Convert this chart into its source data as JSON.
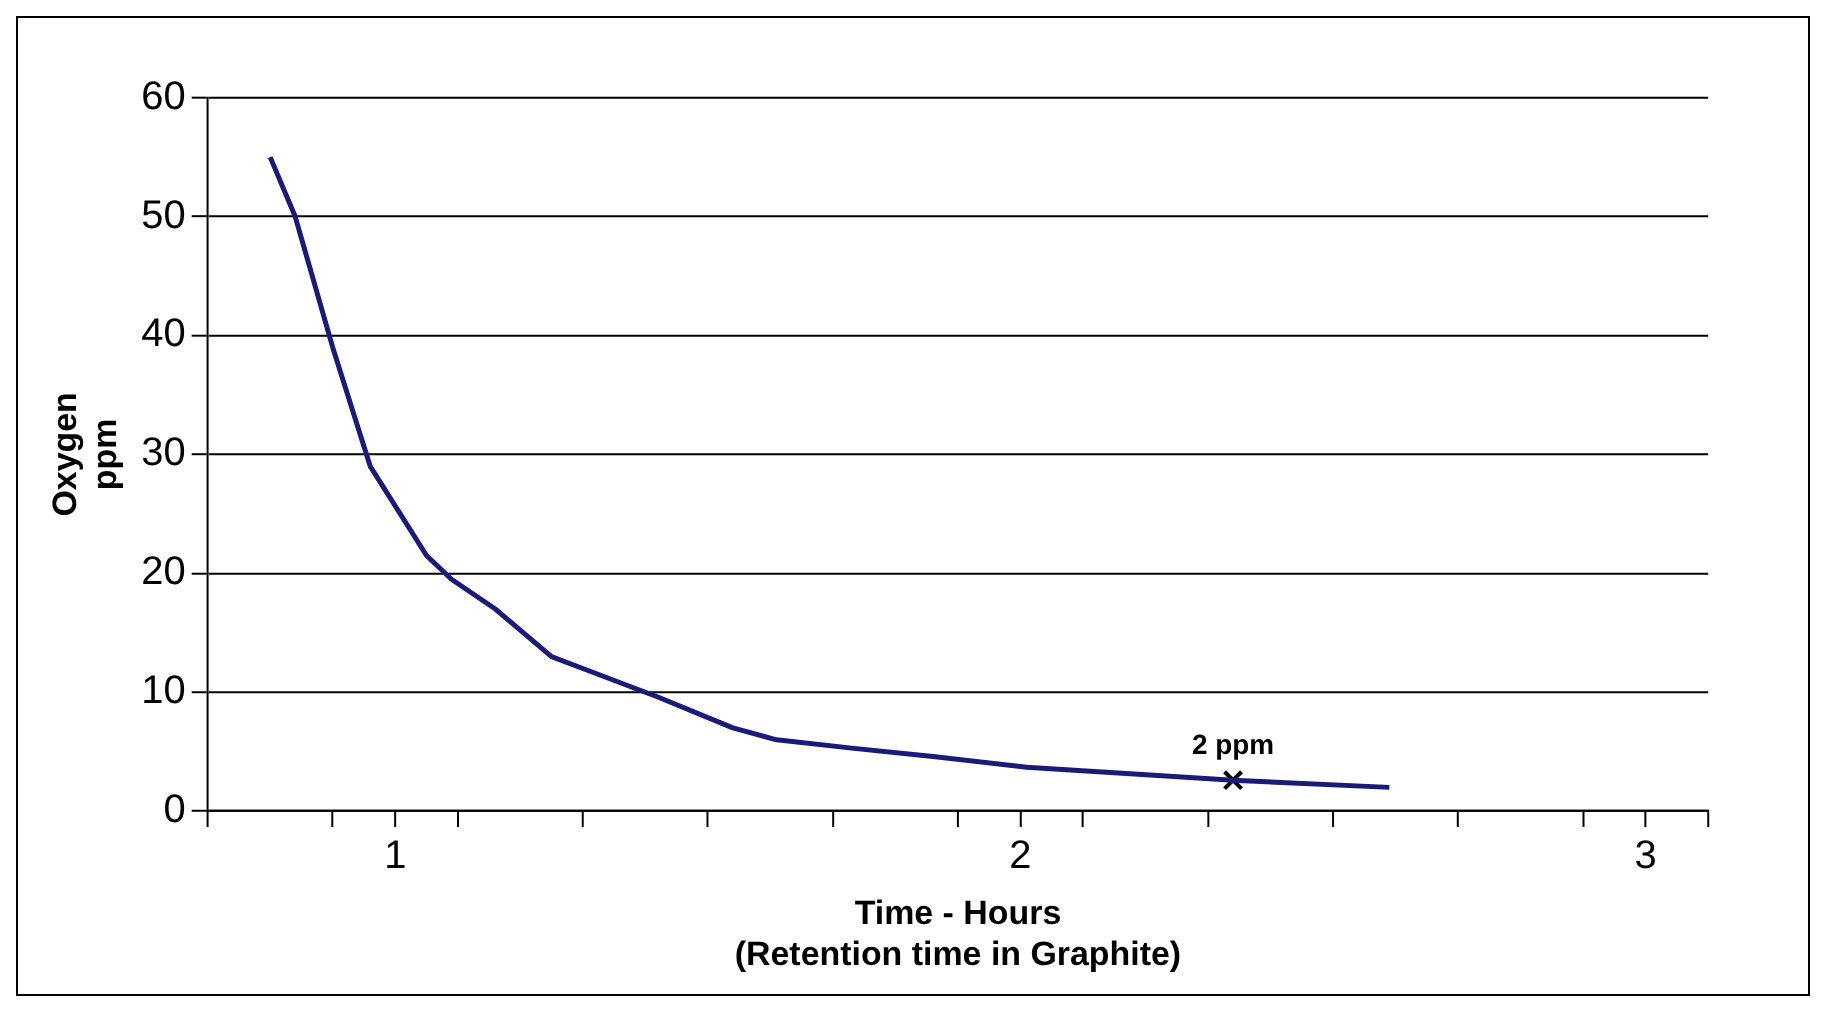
{
  "chart_data": {
    "type": "line",
    "xlabel": "Time - Hours\n(Retention time in Graphite)",
    "ylabel": "Oxygen\nppm",
    "xlim": [
      0.7,
      3.1
    ],
    "xticks": [
      {
        "value": 0.7,
        "label": null
      },
      {
        "value": 0.9,
        "label": null
      },
      1,
      {
        "value": 1.1,
        "label": null
      },
      {
        "value": 1.3,
        "label": null
      },
      {
        "value": 1.5,
        "label": null
      },
      {
        "value": 1.7,
        "label": null
      },
      {
        "value": 1.9,
        "label": null
      },
      2,
      {
        "value": 2.1,
        "label": null
      },
      {
        "value": 2.3,
        "label": null
      },
      {
        "value": 2.5,
        "label": null
      },
      {
        "value": 2.7,
        "label": null
      },
      {
        "value": 2.9,
        "label": null
      },
      3,
      {
        "value": 3.1,
        "label": null
      }
    ],
    "ylim": [
      0,
      60
    ],
    "yticks": [
      0,
      10,
      20,
      30,
      40,
      50,
      60
    ],
    "grid": "y",
    "legend": false,
    "line_style": "solid",
    "marker": "none",
    "series": [
      {
        "color": "#1a1a7a",
        "x": [
          0.8,
          0.84,
          0.9,
          0.96,
          1.05,
          1.09,
          1.16,
          1.25,
          1.3,
          1.42,
          1.54,
          1.61,
          1.73,
          1.86,
          2.01,
          2.22,
          2.34,
          2.59
        ],
        "values": [
          55,
          50,
          39,
          29,
          21.5,
          19.5,
          17,
          13,
          12,
          9.6,
          7,
          6,
          5.3,
          4.6,
          3.7,
          3,
          2.6,
          2
        ]
      },
      {
        "type": "scatter",
        "marker": "cross",
        "color": "#000000",
        "x": [
          2.34
        ],
        "values": [
          2.6
        ]
      }
    ],
    "annotations": [
      {
        "text": "2 ppm",
        "x": 2.34,
        "y": 2.6
      }
    ]
  }
}
